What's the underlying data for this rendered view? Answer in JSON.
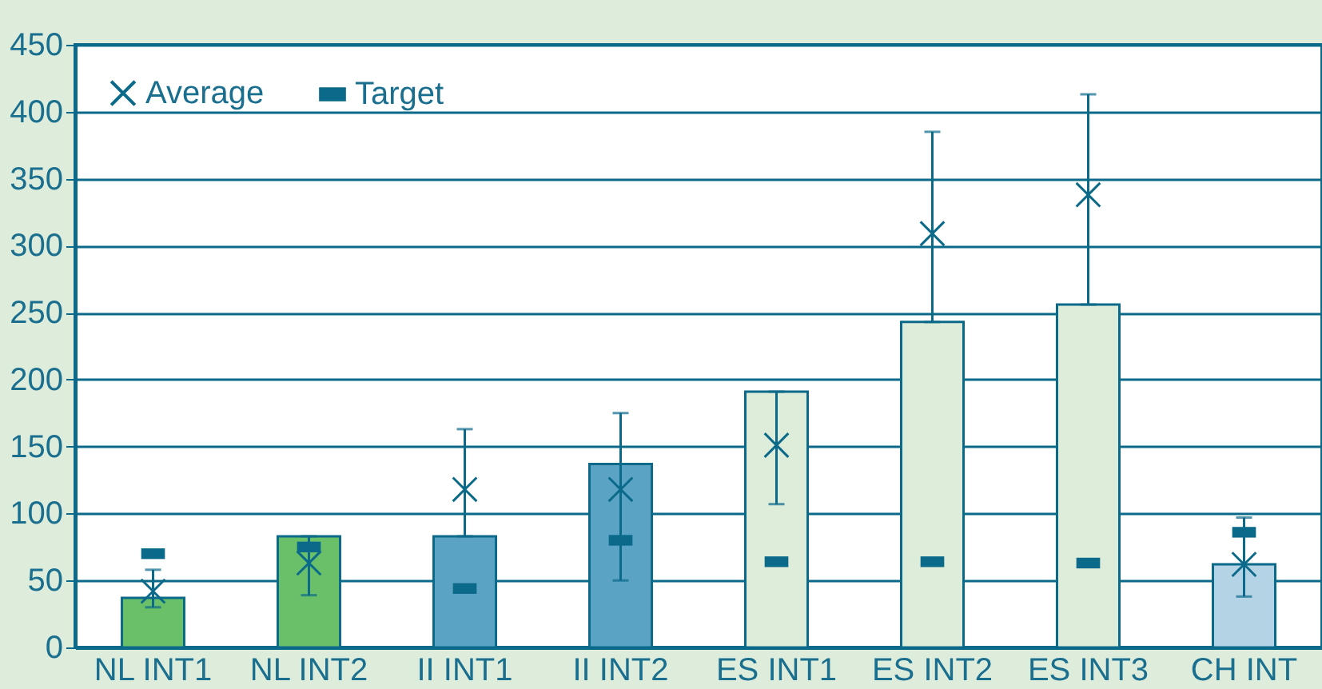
{
  "chart_data": {
    "type": "bar",
    "categories": [
      "NL INT1",
      "NL INT2",
      "II INT1",
      "II INT2",
      "ES INT1",
      "ES INT2",
      "ES INT3",
      "CH INT"
    ],
    "ylim": [
      0,
      450
    ],
    "yticks": [
      0,
      50,
      100,
      150,
      200,
      250,
      300,
      350,
      400,
      450
    ],
    "grid": "y",
    "legend": "top left",
    "series": [
      {
        "values": [
          37,
          83,
          83,
          137,
          191,
          243,
          256,
          62
        ],
        "colors": [
          "#6abf69",
          "#6abf69",
          "#5ba3c4",
          "#5ba3c4",
          "#deecda",
          "#deecda",
          "#deecda",
          "#b4d3e5"
        ]
      },
      {
        "type": "scatter",
        "name": "Average",
        "color": "#0b6a8a",
        "marker": "cross",
        "values": [
          42,
          63,
          118,
          118,
          151,
          309,
          338,
          62
        ],
        "errors": [
          [
            30,
            58
          ],
          [
            39,
            83
          ],
          [
            83,
            163
          ],
          [
            50,
            175
          ],
          [
            107,
            191
          ],
          [
            243,
            385
          ],
          [
            256,
            413
          ],
          [
            38,
            97
          ]
        ]
      },
      {
        "type": "scatter",
        "name": "Target",
        "color": "#0b6a8a",
        "marker": "square",
        "values": [
          70,
          75,
          44,
          80,
          64,
          64,
          63,
          86
        ]
      }
    ]
  }
}
